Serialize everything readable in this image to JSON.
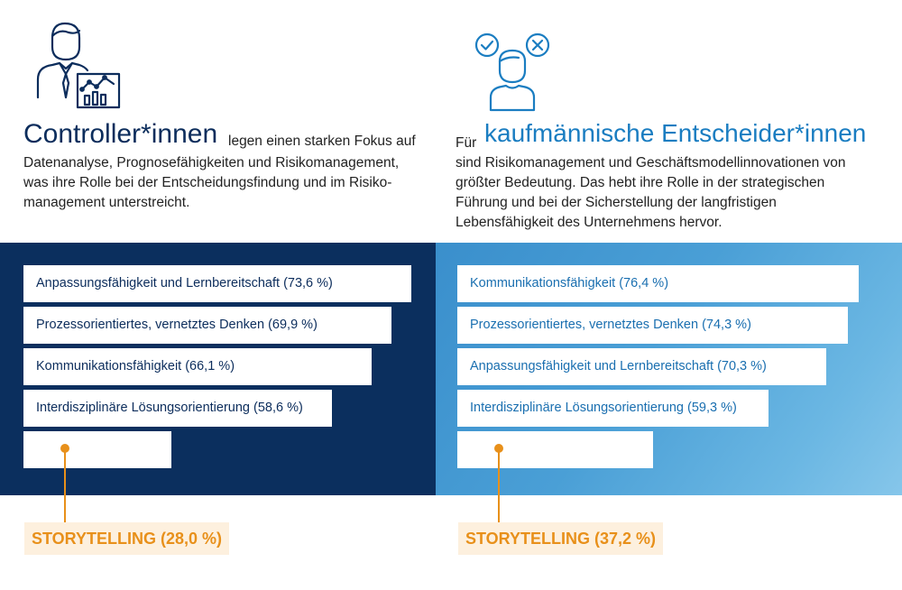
{
  "colors": {
    "navy": "#0b2f5e",
    "blue": "#1a7dc1",
    "orange": "#e8901a",
    "orange_bg": "#fdf0de"
  },
  "left": {
    "icon": "controller-person-chart-icon",
    "title": "Controller*innen",
    "lead": "legen einen starken Fokus auf",
    "body": "Datenanalyse, Prognosefähigkeiten und Risikomanagement, was ihre Rolle bei der Entscheidungsfindung und im Risiko-management unterstreicht."
  },
  "right": {
    "icon": "decision-person-check-cross-icon",
    "pre": "Für",
    "title": "kaufmännische Entscheider*innen",
    "body": "sind Risikomanagement und Geschäftsmodellinnovationen von größter Bedeutung. Das hebt ihre Rolle in der strategischen Führung und bei der Sicherstellung der langfristigen Lebensfähigkeit des Unternehmens hervor."
  },
  "chart_data": [
    {
      "type": "bar",
      "orientation": "horizontal",
      "group": "Controller*innen",
      "categories": [
        "Anpassungsfähigkeit und Lernbereitschaft (73,6 %)",
        "Prozessorientiertes, vernetztes Denken (69,9 %)",
        "Kommunikationsfähigkeit (66,1 %)",
        "Interdisziplinäre Lösungsorientierung (58,6 %)",
        "STORYTELLING (28,0 %)"
      ],
      "values": [
        73.6,
        69.9,
        66.1,
        58.6,
        28.0
      ],
      "unit": "%"
    },
    {
      "type": "bar",
      "orientation": "horizontal",
      "group": "kaufmännische Entscheider*innen",
      "categories": [
        "Kommunikationsfähigkeit (76,4 %)",
        "Prozessorientiertes, vernetztes Denken (74,3 %)",
        "Anpassungsfähigkeit und Lernbereitschaft (70,3 %)",
        "Interdisziplinäre Lösungsorientierung (59,3 %)",
        "STORYTELLING (37,2 %)"
      ],
      "values": [
        76.4,
        74.3,
        70.3,
        59.3,
        37.2
      ],
      "unit": "%"
    }
  ]
}
